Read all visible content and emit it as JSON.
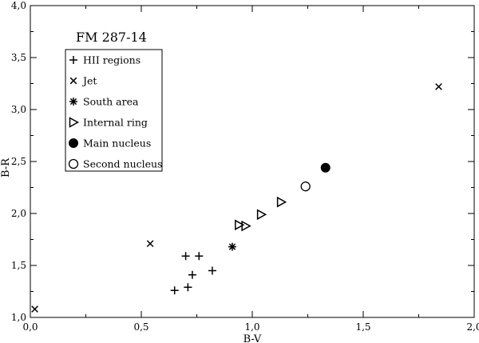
{
  "chart_data": {
    "type": "scatter",
    "title": "FM 287-14",
    "xlabel": "B-V",
    "ylabel": "B-R",
    "xlim": [
      0.0,
      2.0
    ],
    "ylim": [
      1.0,
      4.0
    ],
    "x_ticks": [
      "0,0",
      "0,5",
      "1,0",
      "1,5",
      "2,0"
    ],
    "y_ticks": [
      "1,0",
      "1,5",
      "2,0",
      "2,5",
      "3,0",
      "3,5",
      "4,0"
    ],
    "grid": false,
    "legend_position": "top-left",
    "series": [
      {
        "name": "HII regions",
        "marker": "plus",
        "points": [
          {
            "x": 0.65,
            "y": 1.26
          },
          {
            "x": 0.7,
            "y": 1.59
          },
          {
            "x": 0.71,
            "y": 1.29
          },
          {
            "x": 0.73,
            "y": 1.41
          },
          {
            "x": 0.76,
            "y": 1.59
          },
          {
            "x": 0.82,
            "y": 1.45
          }
        ]
      },
      {
        "name": "Jet",
        "marker": "cross",
        "points": [
          {
            "x": 0.02,
            "y": 1.08
          },
          {
            "x": 0.54,
            "y": 1.71
          },
          {
            "x": 1.84,
            "y": 3.22
          }
        ]
      },
      {
        "name": "South area",
        "marker": "star",
        "points": [
          {
            "x": 0.91,
            "y": 1.68
          }
        ]
      },
      {
        "name": "Internal ring",
        "marker": "triangle-right",
        "points": [
          {
            "x": 0.94,
            "y": 1.89
          },
          {
            "x": 0.97,
            "y": 1.88
          },
          {
            "x": 1.04,
            "y": 1.99
          },
          {
            "x": 1.13,
            "y": 2.11
          }
        ]
      },
      {
        "name": "Main nucleus",
        "marker": "filled-circle",
        "points": [
          {
            "x": 1.33,
            "y": 2.44
          }
        ]
      },
      {
        "name": "Second nucleus",
        "marker": "open-circle",
        "points": [
          {
            "x": 1.24,
            "y": 2.26
          }
        ]
      }
    ]
  }
}
